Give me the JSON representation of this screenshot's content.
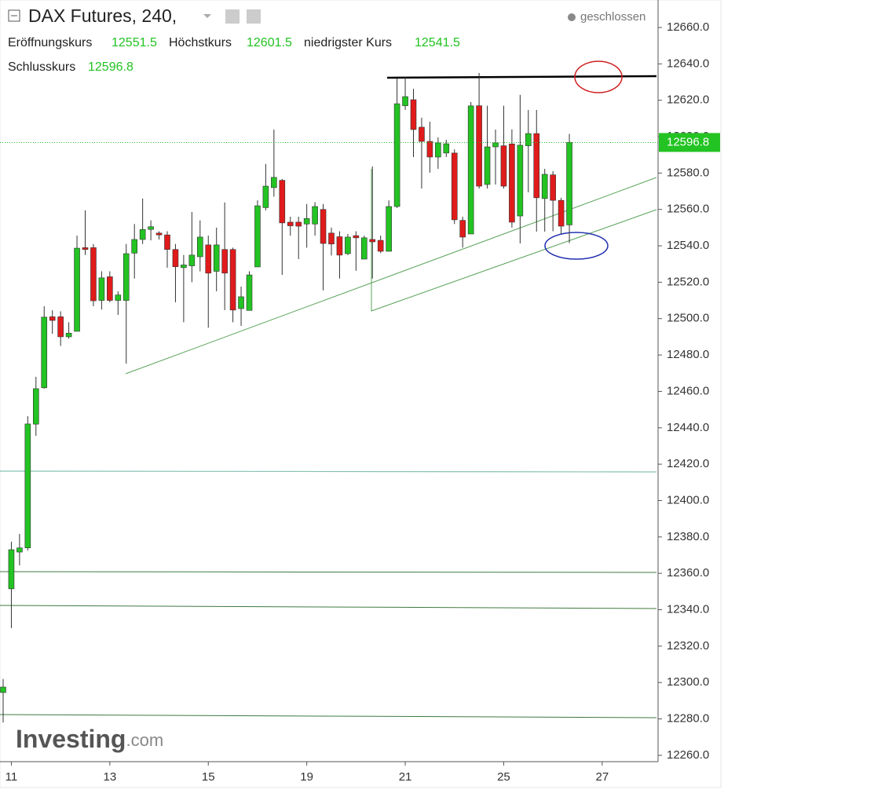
{
  "header": {
    "title": "DAX Futures, 240,",
    "status": "geschlossen",
    "summary": [
      {
        "label": "Eröffnungskurs",
        "value": 12551.5
      },
      {
        "label": "Höchstkurs",
        "value": 12601.5
      },
      {
        "label": "niedrigster Kurs",
        "value": 12541.5
      },
      {
        "label": "Schlusskurs",
        "value": 12596.8
      }
    ]
  },
  "watermark": {
    "brand": "Investing",
    "suffix": ".com"
  },
  "chart_data": {
    "type": "candlestick",
    "up_color": "#22c322",
    "down_color": "#e01b1b",
    "last_price": 12596.8,
    "last_price_color": "#22c322",
    "ylim": [
      12256.5,
      12675.1
    ],
    "yticks": [
      {
        "value": 12260,
        "label": "12260.0"
      },
      {
        "value": 12280,
        "label": "12280.0"
      },
      {
        "value": 12300,
        "label": "12300.0"
      },
      {
        "value": 12320,
        "label": "12320.0"
      },
      {
        "value": 12340,
        "label": "12340.0"
      },
      {
        "value": 12360,
        "label": "12360.0"
      },
      {
        "value": 12380,
        "label": "12380.0"
      },
      {
        "value": 12400,
        "label": "12400.0"
      },
      {
        "value": 12420,
        "label": "12420.0"
      },
      {
        "value": 12440,
        "label": "12440.0"
      },
      {
        "value": 12460,
        "label": "12460.0"
      },
      {
        "value": 12480,
        "label": "12480.0"
      },
      {
        "value": 12500,
        "label": "12500.0"
      },
      {
        "value": 12520,
        "label": "12520.0"
      },
      {
        "value": 12540,
        "label": "12540.0"
      },
      {
        "value": 12560,
        "label": "12560.0"
      },
      {
        "value": 12580,
        "label": "12580.0"
      },
      {
        "value": 12600,
        "label": "12600.0"
      },
      {
        "value": 12620,
        "label": "12620.0"
      },
      {
        "value": 12640,
        "label": "12640.0"
      },
      {
        "value": 12660,
        "label": "12660.0"
      }
    ],
    "categories": [
      null,
      "11",
      null,
      null,
      null,
      null,
      null,
      null,
      null,
      null,
      null,
      null,
      null,
      "13",
      null,
      null,
      null,
      null,
      null,
      null,
      null,
      null,
      null,
      null,
      null,
      "15",
      null,
      null,
      null,
      null,
      null,
      null,
      null,
      null,
      null,
      null,
      null,
      "19",
      null,
      null,
      null,
      null,
      null,
      null,
      null,
      null,
      null,
      null,
      null,
      "21",
      null,
      null,
      null,
      null,
      null,
      null,
      null,
      null,
      null,
      null,
      null,
      "25",
      null,
      null,
      null,
      null,
      null,
      null,
      null,
      null,
      null,
      null,
      null,
      "27",
      null,
      null,
      null,
      null,
      null,
      null
    ],
    "open": [
      12294.5,
      12351.5,
      12371.7,
      12374,
      12442,
      12462,
      12501,
      12501,
      12490,
      12493,
      12539,
      12539,
      12510,
      12523,
      12510,
      12510,
      12536,
      12543.5,
      12549,
      12547,
      12546,
      12538,
      12528,
      12529,
      12534,
      12540.5,
      12526,
      12538,
      12538,
      12505.5,
      12504.5,
      12528.4,
      12561,
      12572,
      12576,
      12553,
      12553,
      12552,
      12552,
      12560,
      12547,
      12545,
      12535.7,
      12545.6,
      12532.7,
      12543.5,
      12543,
      12537,
      12561.6,
      12617,
      12620.3,
      12605.2,
      12597.4,
      12588.8,
      12591,
      12591,
      12554,
      12546.5,
      12617,
      12573.7,
      12594.4,
      12595,
      12596,
      12556.4,
      12595,
      12601.7,
      12566,
      12579,
      12565,
      12551.5,
      null,
      null,
      null,
      null,
      null,
      null,
      null,
      null,
      null,
      null
    ],
    "high": [
      12301.9,
      12377.4,
      12381.7,
      12446.4,
      12468,
      12506.8,
      12504.6,
      12504,
      12498,
      12545.6,
      12559.5,
      12541,
      12526,
      12526,
      12515,
      12541,
      12552,
      12566,
      12554,
      12548,
      12548,
      12541,
      12535,
      12558.6,
      12554,
      12545.6,
      12550,
      12563.8,
      12539,
      12517.6,
      12526,
      12565,
      12585,
      12603.9,
      12576.7,
      12556,
      12556,
      12563,
      12564,
      12563,
      12550,
      12548,
      12546.5,
      12548,
      12545.6,
      12583.6,
      12545.6,
      12565,
      12631.9,
      12632.8,
      12626.3,
      12610.4,
      12608.2,
      12599.6,
      12598.3,
      12593,
      12556,
      12619,
      12635,
      12617,
      12603.9,
      12617,
      12604,
      12623,
      12614.7,
      12614.7,
      12582.3,
      12581,
      12566.4,
      12601.5,
      null,
      null,
      null,
      null,
      null,
      null,
      null,
      null,
      null,
      null
    ],
    "low": [
      12278,
      12329.9,
      12364.4,
      12372.6,
      12435.6,
      12461.5,
      12491.7,
      12485,
      12489,
      12493,
      12535,
      12506.8,
      12505,
      12509,
      12502,
      12475.3,
      12522,
      12541,
      12543,
      12543.5,
      12528,
      12509,
      12498,
      12520,
      12526,
      12495,
      12515,
      12504.7,
      12498,
      12496,
      12504.5,
      12528.4,
      12559.5,
      12567,
      12524,
      12545.6,
      12532.7,
      12539,
      12545.6,
      12515.5,
      12534.7,
      12522,
      12534.9,
      12526.3,
      12532.7,
      12522,
      12536,
      12537,
      12560.8,
      12614.7,
      12588.8,
      12571.5,
      12580.2,
      12582.3,
      12588.8,
      12552,
      12539,
      12546.5,
      12571.5,
      12571.5,
      12573.7,
      12571.5,
      12550,
      12541.3,
      12569.4,
      12547.8,
      12547.8,
      12548,
      12546.5,
      12541.5,
      null,
      null,
      null,
      null,
      null,
      null,
      null,
      null,
      null,
      null
    ],
    "close": [
      12297.5,
      12373,
      12374,
      12442.1,
      12461.5,
      12500.8,
      12499,
      12490,
      12492,
      12538.7,
      12538,
      12509.8,
      12522.4,
      12510,
      12513,
      12535.7,
      12543.5,
      12549,
      12550.5,
      12546,
      12538,
      12528.5,
      12529.5,
      12534.9,
      12544.8,
      12525,
      12540.5,
      12525,
      12504.7,
      12512,
      12524,
      12562,
      12572.8,
      12577.6,
      12552.6,
      12551,
      12550.8,
      12555,
      12561.6,
      12541.3,
      12541,
      12534.9,
      12544.8,
      12544.4,
      12544.4,
      12542.2,
      12537,
      12561.6,
      12618.1,
      12622,
      12603.9,
      12597.4,
      12588.8,
      12596.6,
      12596.1,
      12554.3,
      12544.8,
      12616.9,
      12572.8,
      12594.4,
      12596.6,
      12572.8,
      12553,
      12595.3,
      12601.7,
      12566.4,
      12579.3,
      12565,
      12550.8,
      12596.8,
      null,
      null,
      null,
      null,
      null,
      null,
      null,
      null,
      null,
      null
    ]
  }
}
